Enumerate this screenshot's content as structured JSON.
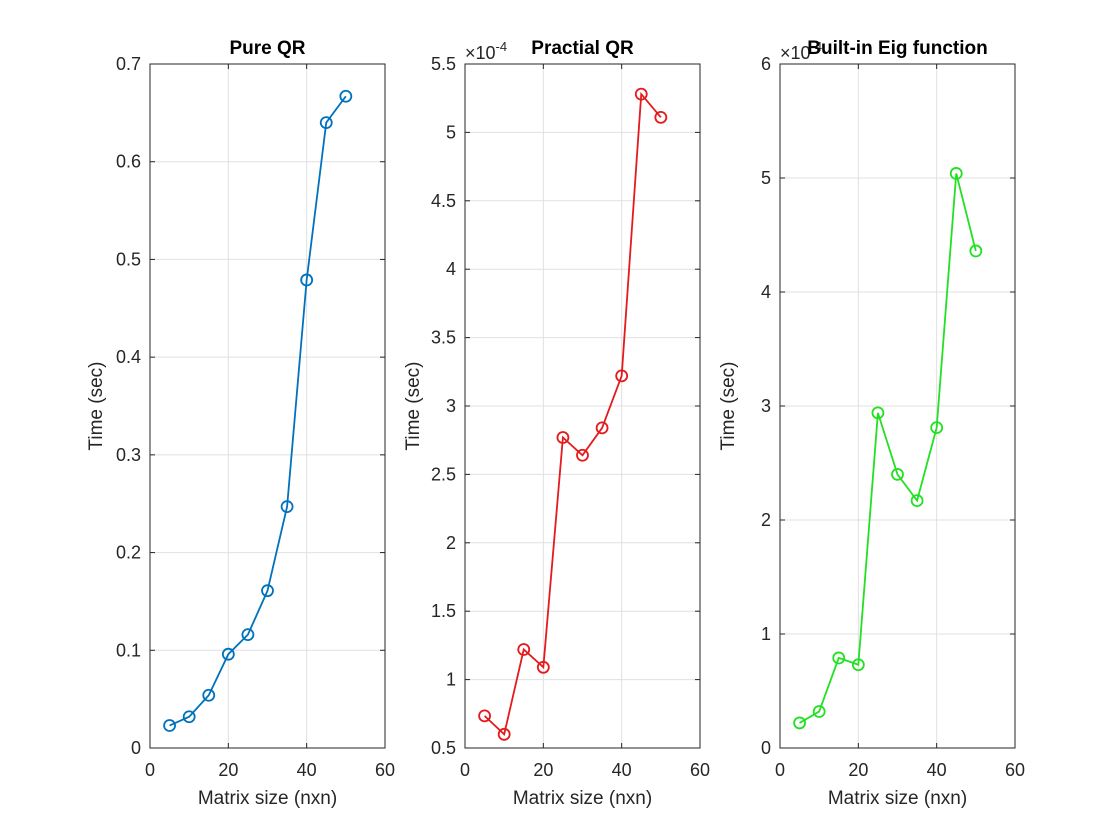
{
  "chart_data": [
    {
      "type": "line",
      "title": "Pure QR",
      "xlabel": "Matrix size (nxn)",
      "ylabel": "Time (sec)",
      "xlim": [
        0,
        60
      ],
      "ylim": [
        0,
        0.7
      ],
      "xticks": [
        "0",
        "20",
        "40",
        "60"
      ],
      "yticks": [
        "0",
        "0.1",
        "0.2",
        "0.3",
        "0.4",
        "0.5",
        "0.6",
        "0.7"
      ],
      "exponent": "",
      "grid": true,
      "color": "#0072bd",
      "marker": "circle",
      "x": [
        5,
        10,
        15,
        20,
        25,
        30,
        35,
        40,
        45,
        50
      ],
      "y": [
        0.023,
        0.032,
        0.054,
        0.096,
        0.116,
        0.161,
        0.247,
        0.479,
        0.64,
        0.667
      ]
    },
    {
      "type": "line",
      "title": "Practial QR",
      "xlabel": "Matrix size (nxn)",
      "ylabel": "Time (sec)",
      "xlim": [
        0,
        60
      ],
      "ylim": [
        5e-05,
        0.00055
      ],
      "xticks": [
        "0",
        "20",
        "40",
        "60"
      ],
      "yticks": [
        "0.5",
        "1",
        "1.5",
        "2",
        "2.5",
        "3",
        "3.5",
        "4",
        "4.5",
        "5",
        "5.5"
      ],
      "exponent": "-4",
      "grid": true,
      "color": "#e41a1c",
      "marker": "circle",
      "x": [
        5,
        10,
        15,
        20,
        25,
        30,
        35,
        40,
        45,
        50
      ],
      "y": [
        7.35e-05,
        6e-05,
        0.000122,
        0.000109,
        0.000277,
        0.000264,
        0.000284,
        0.000322,
        0.000528,
        0.000511
      ]
    },
    {
      "type": "line",
      "title": "Built-in Eig function",
      "xlabel": "Matrix size (nxn)",
      "ylabel": "Time (sec)",
      "xlim": [
        0,
        60
      ],
      "ylim": [
        0,
        0.0006
      ],
      "xticks": [
        "0",
        "20",
        "40",
        "60"
      ],
      "yticks": [
        "0",
        "1",
        "2",
        "3",
        "4",
        "5",
        "6"
      ],
      "exponent": "-4",
      "grid": true,
      "color": "#22e022",
      "marker": "circle",
      "x": [
        5,
        10,
        15,
        20,
        25,
        30,
        35,
        40,
        45,
        50
      ],
      "y": [
        2.2e-05,
        3.2e-05,
        7.9e-05,
        7.3e-05,
        0.000294,
        0.00024,
        0.000217,
        0.000281,
        0.000504,
        0.000436
      ]
    }
  ]
}
